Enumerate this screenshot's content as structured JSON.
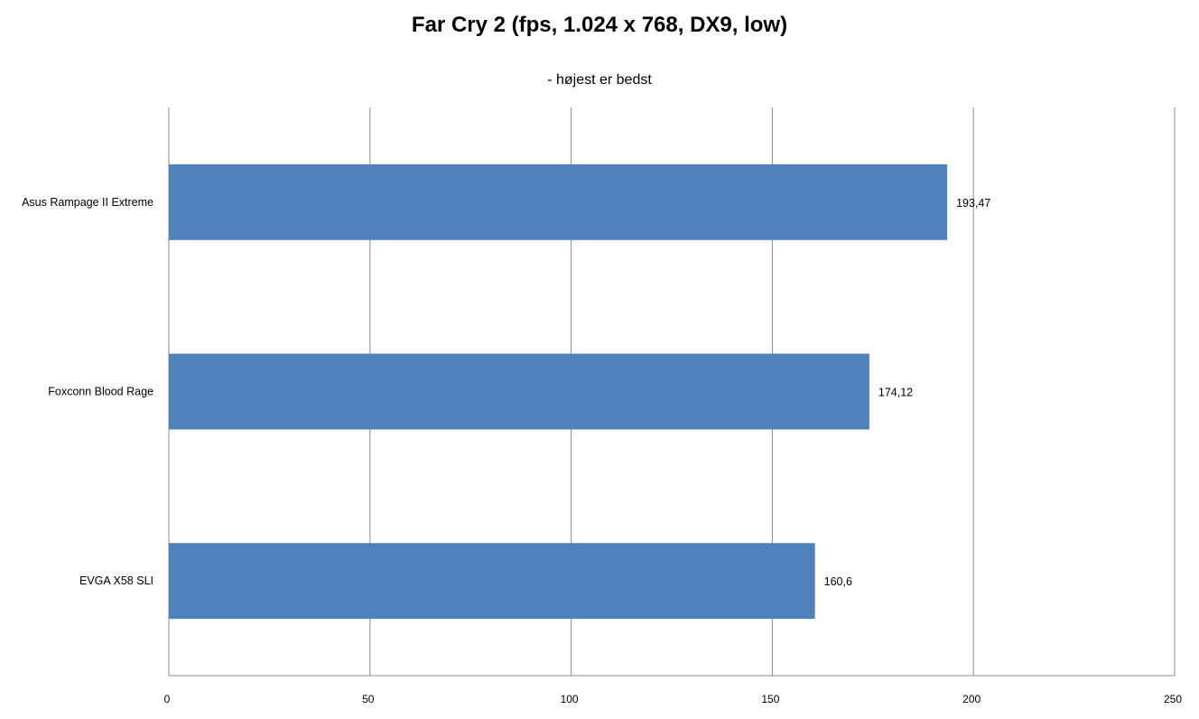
{
  "chart_data": {
    "type": "bar",
    "orientation": "horizontal",
    "title": "Far Cry 2 (fps, 1.024 x 768, DX9, low)",
    "subtitle": "- højest er bedst",
    "categories": [
      "Asus Rampage  II Extreme",
      "Foxconn Blood Rage",
      "EVGA X58  SLI"
    ],
    "values": [
      193.47,
      174.12,
      160.6
    ],
    "data_labels": [
      "193,47",
      "174,12",
      "160,6"
    ],
    "xlim": [
      0,
      250
    ],
    "x_ticks": [
      0,
      50,
      100,
      150,
      200,
      250
    ],
    "x_tick_labels": [
      "0",
      "50",
      "100",
      "150",
      "200",
      "250"
    ],
    "grid": true,
    "legend": "none",
    "bar_color": "#4f81bd",
    "grid_color": "#8c8c8c"
  }
}
